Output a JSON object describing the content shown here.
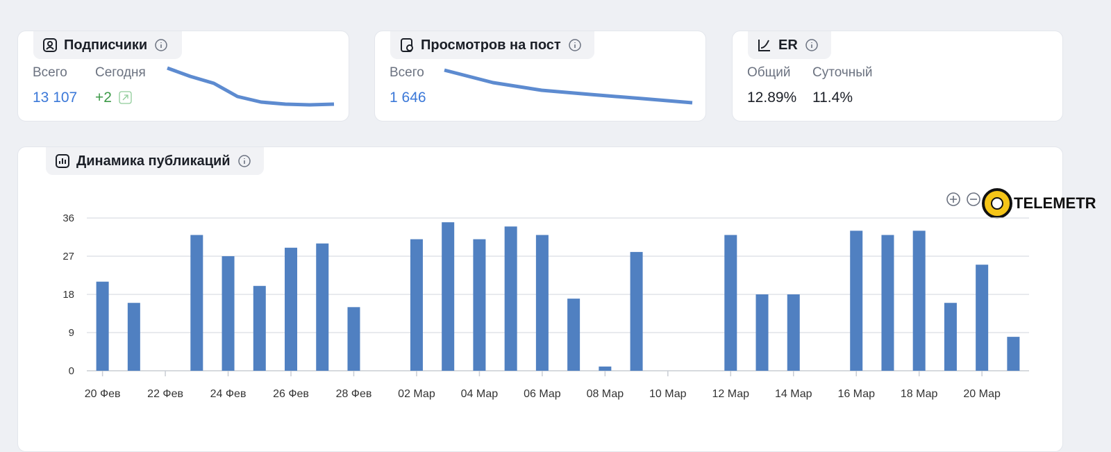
{
  "cards": [
    {
      "title": "Подписчики",
      "stats": [
        {
          "label": "Всего",
          "value": "13 107"
        },
        {
          "label": "Сегодня",
          "value": "+2"
        }
      ]
    },
    {
      "title": "Просмотров на пост",
      "stats": [
        {
          "label": "Всего",
          "value": "1 646"
        }
      ]
    },
    {
      "title": "ER",
      "stats": [
        {
          "label": "Общий",
          "value": "12.89%"
        },
        {
          "label": "Суточный",
          "value": "11.4%"
        }
      ]
    }
  ],
  "watermark": "TELEMETR",
  "chart_data": {
    "type": "bar",
    "title": "Динамика публикаций",
    "categories": [
      "20 Фев",
      null,
      "22 Фев",
      null,
      "24 Фев",
      null,
      "26 Фев",
      null,
      "28 Фев",
      null,
      "02 Мар",
      null,
      "04 Мар",
      null,
      "06 Мар",
      null,
      "08 Мар",
      null,
      "10 Мар",
      null,
      "12 Мар",
      null,
      "14 Мар",
      null,
      "16 Мар",
      null,
      "18 Мар",
      null,
      "20 Мар",
      null
    ],
    "values": [
      21,
      16,
      0,
      32,
      27,
      20,
      29,
      30,
      15,
      0,
      31,
      35,
      31,
      34,
      32,
      17,
      1,
      28,
      0,
      0,
      32,
      18,
      18,
      0,
      33,
      32,
      33,
      16,
      25,
      8
    ],
    "color": "#5080c1",
    "ylim": [
      0,
      36
    ],
    "yticks": [
      0,
      9,
      18,
      27,
      36
    ],
    "grid": true
  }
}
